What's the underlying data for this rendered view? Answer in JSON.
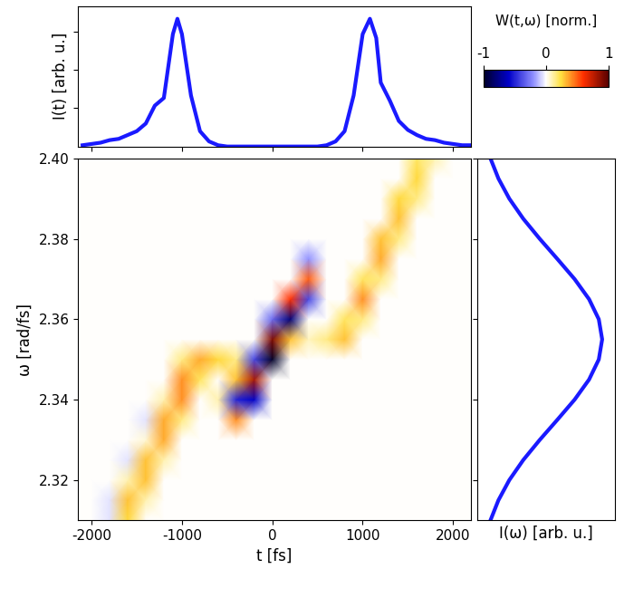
{
  "chart_data": [
    {
      "type": "line",
      "ylabel": "I(t) [arb. u.]",
      "color": "#1a1aff",
      "tick_labels": false,
      "x": [
        -2100,
        -2000,
        -1900,
        -1800,
        -1700,
        -1600,
        -1500,
        -1400,
        -1300,
        -1200,
        -1100,
        -1050,
        -1000,
        -900,
        -800,
        -700,
        -600,
        -500,
        0,
        500,
        600,
        700,
        800,
        900,
        1000,
        1080,
        1150,
        1200,
        1300,
        1400,
        1500,
        1600,
        1700,
        1800,
        1900,
        2000,
        2100,
        2200
      ],
      "values": [
        0.01,
        0.02,
        0.03,
        0.05,
        0.06,
        0.09,
        0.12,
        0.18,
        0.32,
        0.38,
        0.88,
        1.0,
        0.88,
        0.4,
        0.12,
        0.04,
        0.01,
        0,
        0,
        0,
        0.01,
        0.04,
        0.12,
        0.4,
        0.88,
        1.0,
        0.85,
        0.5,
        0.36,
        0.2,
        0.13,
        0.09,
        0.06,
        0.05,
        0.03,
        0.02,
        0.01,
        0.01
      ],
      "xlim": [
        -2150,
        2200
      ],
      "xticks": [
        -2000,
        -1000,
        0,
        1000,
        2000
      ],
      "ylim": [
        0,
        1.1
      ],
      "yticks": [
        0.3,
        0.6,
        0.9
      ]
    },
    {
      "type": "heatmap",
      "xlabel": "t [fs]",
      "ylabel": "ω [rad/fs]",
      "colorbar_label": "W(t,ω) [norm.]",
      "color_range": [
        -1,
        1
      ],
      "color_ticks": [
        -1,
        0,
        1
      ],
      "x": [
        -2200,
        -2000,
        -1800,
        -1600,
        -1400,
        -1200,
        -1000,
        -800,
        -600,
        -400,
        -200,
        0,
        200,
        400,
        600,
        800,
        1000,
        1200,
        1400,
        1600,
        1800,
        2000,
        2200
      ],
      "y": [
        2.31,
        2.315,
        2.32,
        2.325,
        2.33,
        2.335,
        2.34,
        2.345,
        2.35,
        2.355,
        2.36,
        2.365,
        2.37,
        2.375,
        2.38,
        2.385,
        2.39,
        2.395,
        2.4
      ],
      "cells": [
        [
          0,
          0,
          -0.05,
          0.25,
          0,
          0,
          0,
          0,
          0,
          0,
          0,
          0,
          0,
          0,
          0,
          0,
          0,
          0,
          0,
          0,
          0,
          0,
          0
        ],
        [
          0,
          0,
          -0.05,
          0.3,
          0.1,
          0,
          0,
          0,
          0,
          0,
          0,
          0,
          0,
          0,
          0,
          0,
          0,
          0,
          0,
          0,
          0,
          0,
          0
        ],
        [
          0,
          0,
          0,
          0.1,
          0.3,
          0,
          0,
          0,
          0,
          0,
          0,
          0,
          0,
          0,
          0,
          0,
          0,
          0,
          0,
          0,
          0,
          0,
          0
        ],
        [
          0,
          0,
          0,
          -0.05,
          0.3,
          0.1,
          0,
          0,
          0,
          0,
          0,
          0,
          0,
          0,
          0,
          0,
          0,
          0,
          0,
          0,
          0,
          0,
          0
        ],
        [
          0,
          0,
          0,
          0,
          0.05,
          0.35,
          0,
          0,
          0,
          0,
          0,
          0,
          0,
          0,
          0,
          0,
          0,
          0,
          0,
          0,
          0,
          0,
          0
        ],
        [
          0,
          0,
          0,
          0,
          -0.05,
          0.35,
          0.15,
          0,
          0,
          0.4,
          0,
          0,
          0,
          0,
          0,
          0,
          0,
          0,
          0,
          0,
          0,
          0,
          0
        ],
        [
          0,
          0,
          0,
          0,
          0,
          0.1,
          0.4,
          0,
          0.1,
          -0.5,
          -0.6,
          0,
          0,
          0,
          0,
          0,
          0,
          0,
          0,
          0,
          0,
          0,
          0
        ],
        [
          0,
          0,
          0,
          0,
          0,
          0,
          0.4,
          0.2,
          0,
          0.3,
          0.8,
          0,
          0,
          0,
          0,
          0,
          0,
          0,
          0,
          0,
          0,
          0,
          0
        ],
        [
          0,
          0,
          0,
          0,
          0,
          0,
          0.15,
          0.35,
          0.25,
          0.15,
          -0.4,
          -1.0,
          0,
          0,
          0,
          0,
          0,
          0,
          0,
          0,
          0,
          0,
          0
        ],
        [
          0,
          0,
          0,
          0,
          0,
          0,
          0,
          0,
          0,
          0,
          0,
          0.9,
          0.3,
          0.08,
          0.15,
          0.3,
          0,
          0,
          0,
          0,
          0,
          0,
          0
        ],
        [
          0,
          0,
          0,
          0,
          0,
          0,
          0,
          0,
          0,
          0,
          0,
          -0.3,
          -0.8,
          0,
          0,
          0.2,
          0.15,
          0,
          0,
          0,
          0,
          0,
          0
        ],
        [
          0,
          0,
          0,
          0,
          0,
          0,
          0,
          0,
          0,
          0,
          0,
          0,
          0.6,
          -0.4,
          0,
          0,
          0.4,
          0,
          0,
          0,
          0,
          0,
          0
        ],
        [
          0,
          0,
          0,
          0,
          0,
          0,
          0,
          0,
          0,
          0,
          0,
          0,
          0,
          0.5,
          0,
          0,
          0.2,
          0.15,
          0,
          0,
          0,
          0,
          0
        ],
        [
          0,
          0,
          0,
          0,
          0,
          0,
          0,
          0,
          0,
          0,
          0,
          0,
          0,
          -0.2,
          0,
          0,
          0,
          0.35,
          0,
          0,
          0,
          0,
          0
        ],
        [
          0,
          0,
          0,
          0,
          0,
          0,
          0,
          0,
          0,
          0,
          0,
          0,
          0,
          0,
          0,
          0,
          0,
          0.3,
          0.15,
          0,
          0,
          0,
          0
        ],
        [
          0,
          0,
          0,
          0,
          0,
          0,
          0,
          0,
          0,
          0,
          0,
          0,
          0,
          0,
          0,
          0,
          0,
          0,
          0.3,
          0,
          0,
          0,
          0
        ],
        [
          0,
          0,
          0,
          0,
          0,
          0,
          0,
          0,
          0,
          0,
          0,
          0,
          0,
          0,
          0,
          0,
          0,
          0,
          0.25,
          0.15,
          0,
          0,
          0
        ],
        [
          0,
          0,
          0,
          0,
          0,
          0,
          0,
          0,
          0,
          0,
          0,
          0,
          0,
          0,
          0,
          0,
          0,
          0,
          0,
          0.25,
          0,
          0,
          0
        ],
        [
          0,
          0,
          0,
          0,
          0,
          0,
          0,
          0,
          0,
          0,
          0,
          0,
          0,
          0,
          0,
          0,
          0,
          0,
          0,
          0.2,
          0.1,
          0,
          0
        ]
      ],
      "xlim": [
        -2150,
        2200
      ],
      "xticks": [
        -2000,
        -1000,
        0,
        1000,
        2000
      ],
      "ylim": [
        2.31,
        2.4
      ],
      "yticks": [
        2.32,
        2.34,
        2.36,
        2.38,
        {
          "value": 2.4,
          "label": "2.40"
        }
      ]
    },
    {
      "type": "line",
      "orientation": "horizontal",
      "xlabel": "I(ω) [arb. u.]",
      "color": "#1a1aff",
      "tick_labels": false,
      "x": [
        2.31,
        2.315,
        2.32,
        2.325,
        2.33,
        2.335,
        2.34,
        2.345,
        2.35,
        2.355,
        2.36,
        2.365,
        2.37,
        2.375,
        2.38,
        2.385,
        2.39,
        2.395,
        2.4
      ],
      "values": [
        0.105,
        0.169,
        0.256,
        0.368,
        0.5,
        0.641,
        0.779,
        0.895,
        0.973,
        1.0,
        0.973,
        0.895,
        0.779,
        0.641,
        0.5,
        0.368,
        0.256,
        0.169,
        0.105
      ],
      "xlim": [
        0,
        1.1
      ],
      "xticks": [],
      "ylim": [
        2.31,
        2.4
      ],
      "yticks": [
        2.32,
        2.34,
        2.36,
        2.38,
        {
          "value": 2.4,
          "label": "2.40"
        }
      ]
    }
  ]
}
